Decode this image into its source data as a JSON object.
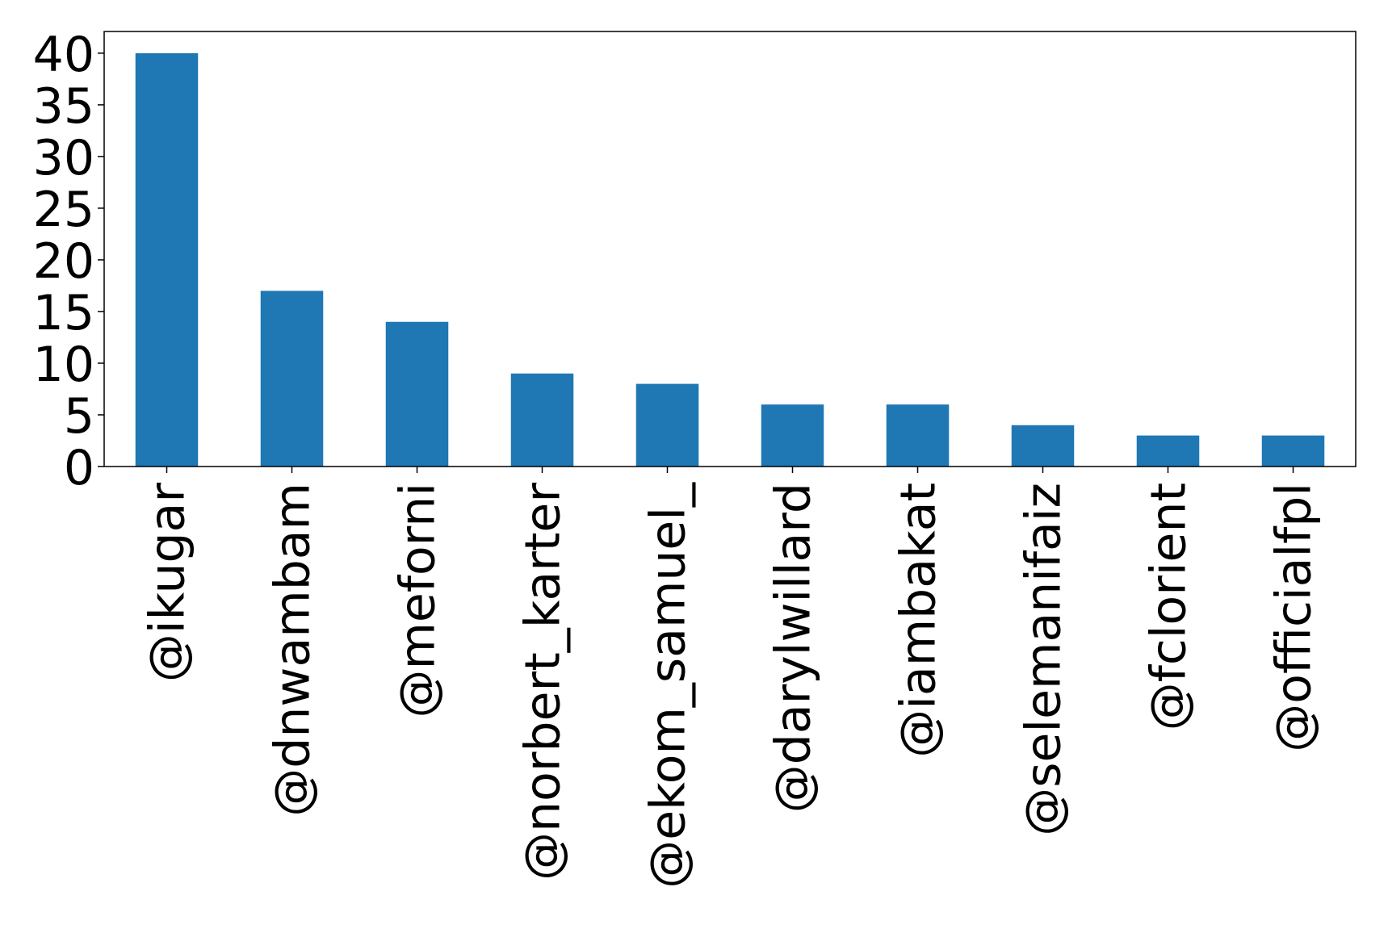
{
  "chart_data": {
    "type": "bar",
    "title": "",
    "xlabel": "",
    "ylabel": "",
    "categories": [
      "@ikugar",
      "@dnwambam",
      "@meforni",
      "@norbert_karter",
      "@ekom_samuel_",
      "@darylwillard",
      "@iambakat",
      "@selemanifaiz",
      "@fclorient",
      "@officialfpl"
    ],
    "values": [
      40,
      17,
      14,
      9,
      8,
      6,
      6,
      4,
      3,
      3
    ],
    "ylim": [
      0,
      42.1
    ],
    "yticks": [
      "0",
      "5",
      "10",
      "15",
      "20",
      "25",
      "30",
      "35",
      "40"
    ],
    "grid": false,
    "bar_color": "#1f77b4"
  }
}
